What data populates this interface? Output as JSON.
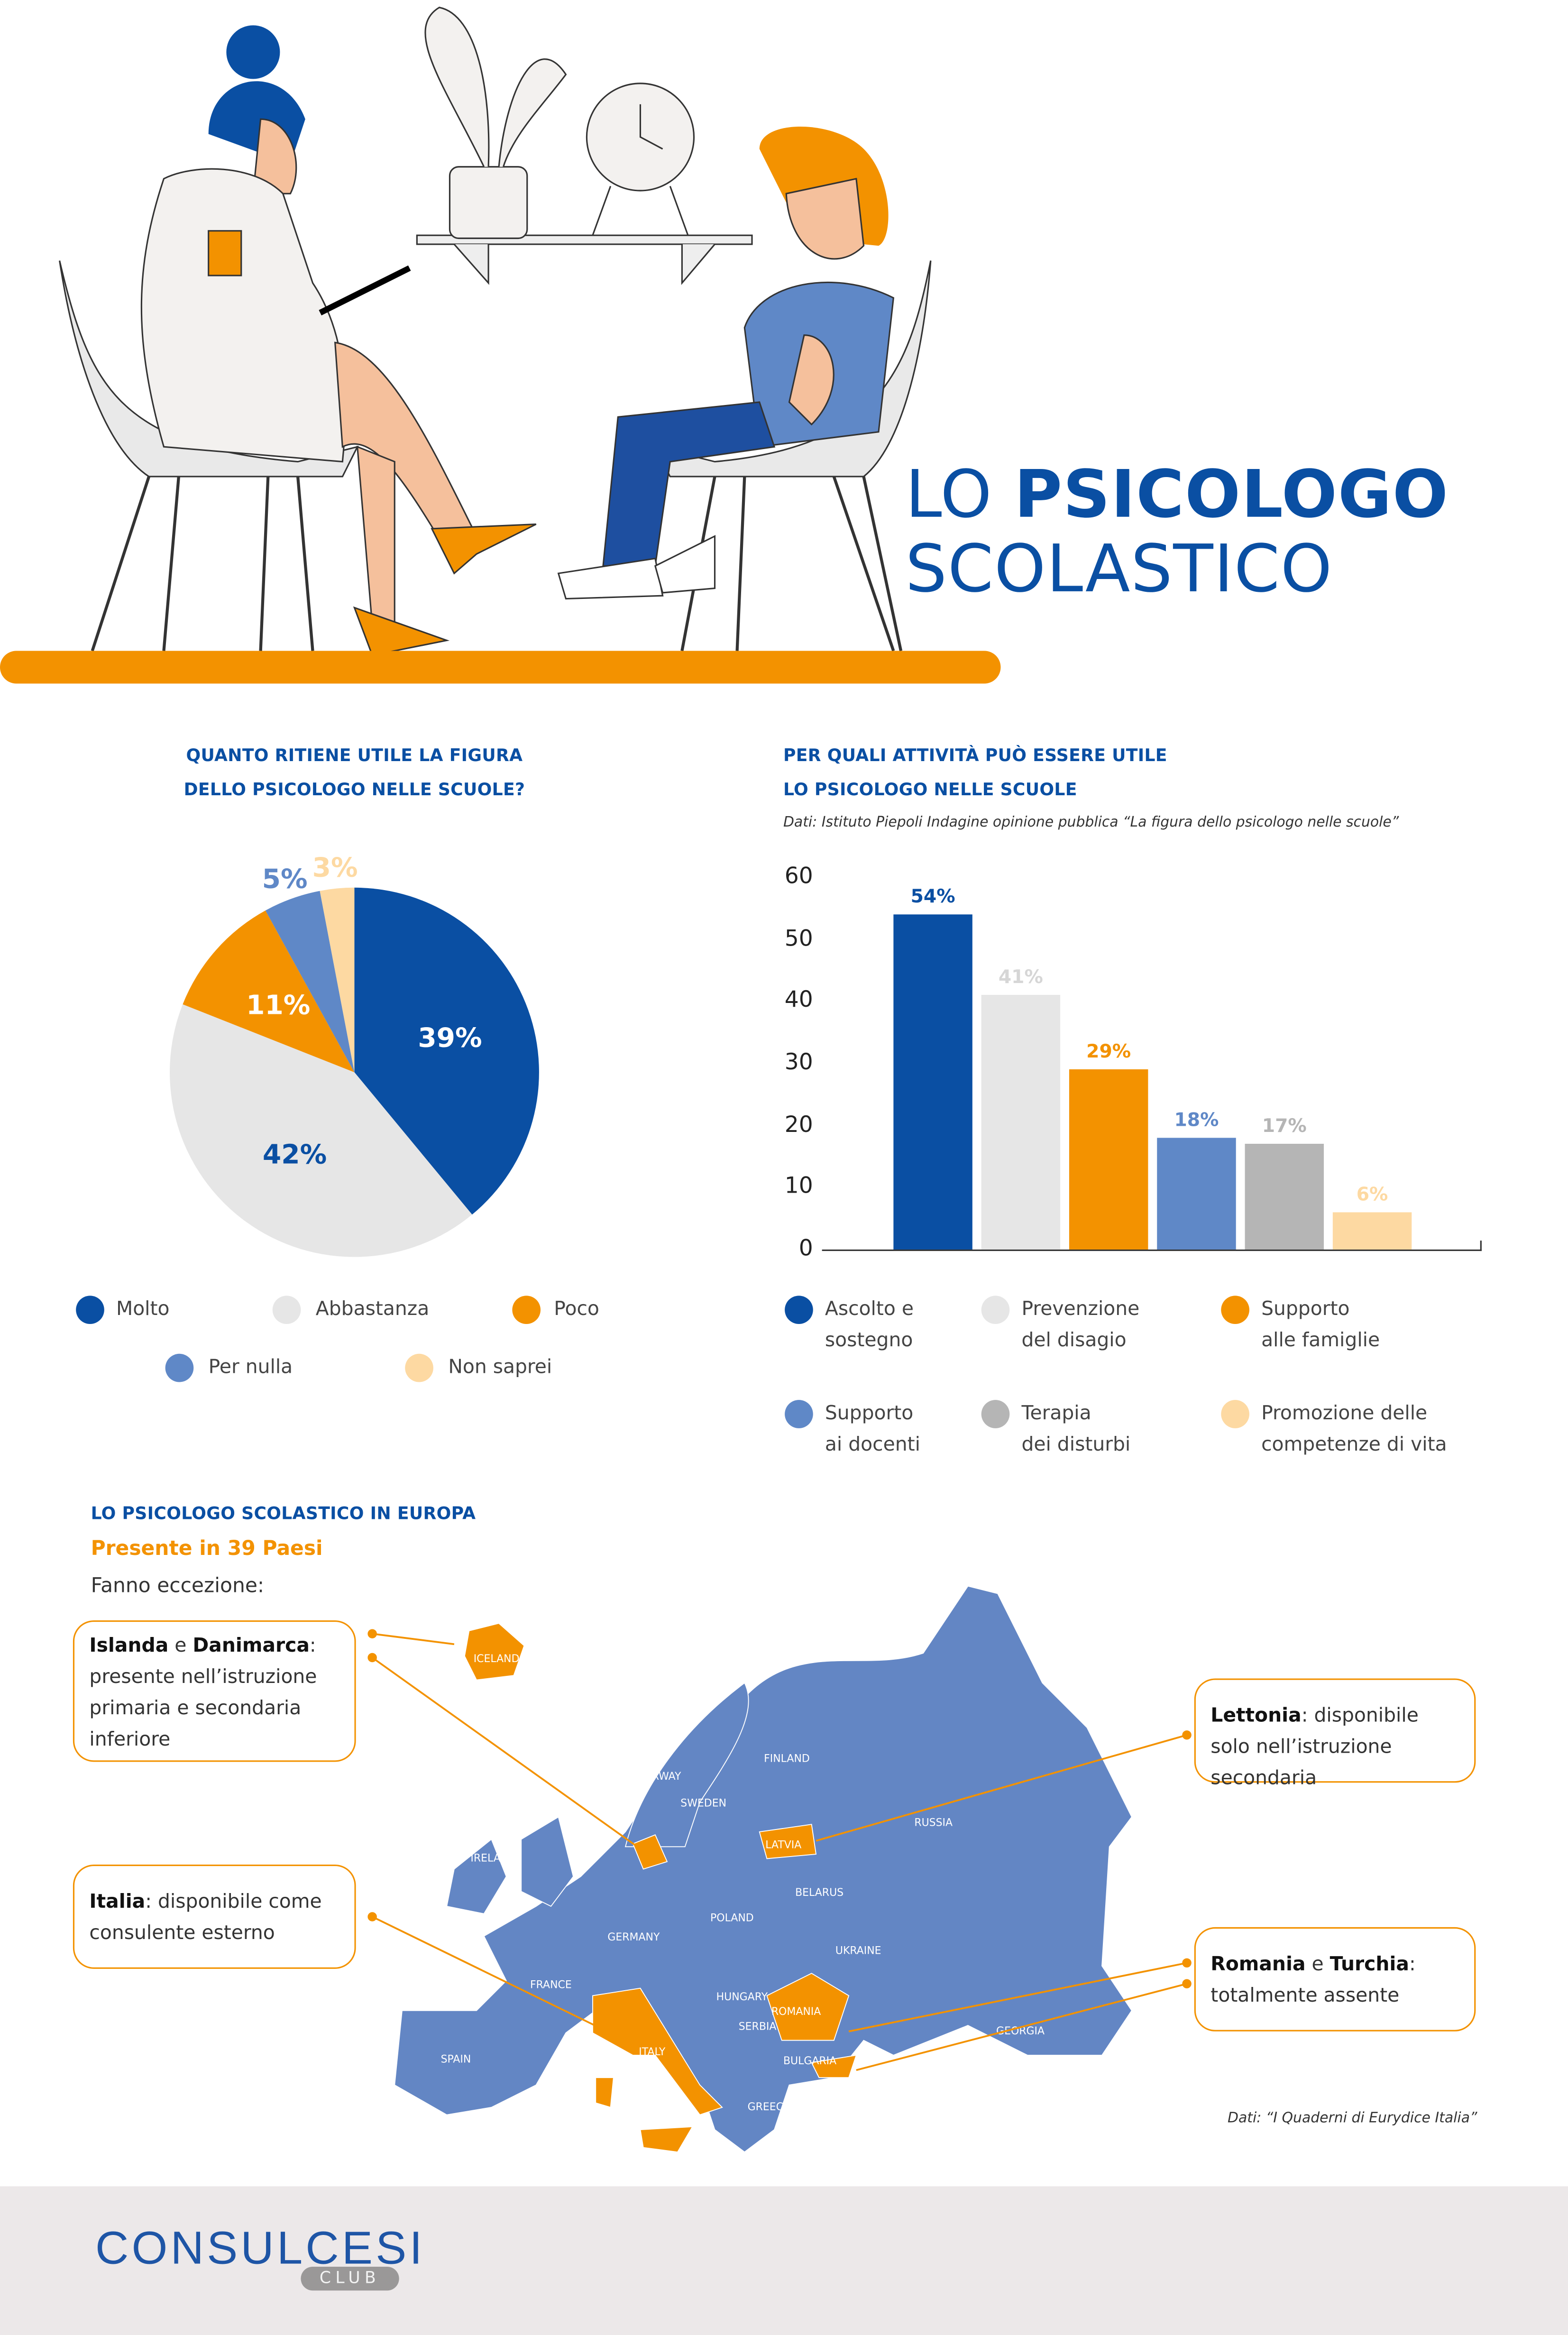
{
  "header": {
    "title_light": "LO",
    "title_bold": "PSICOLOGO",
    "title_line2": "SCOLASTICO"
  },
  "colors": {
    "blue": "#0a4fa3",
    "light_gray": "#e6e6e6",
    "orange": "#f39200",
    "light_blue": "#5f88c7",
    "gray": "#b5b5b5",
    "peach": "#fdd9a2",
    "map_blue": "#6386c4"
  },
  "chart_data": [
    {
      "type": "pie",
      "title": "QUANTO RITIENE UTILE LA FIGURA DELLO PSICOLOGO NELLE SCUOLE?",
      "title_lines": [
        "QUANTO RITIENE UTILE LA FIGURA",
        "DELLO PSICOLOGO NELLE SCUOLE?"
      ],
      "categories": [
        "Molto",
        "Abbastanza",
        "Poco",
        "Per nulla",
        "Non saprei"
      ],
      "values": [
        39,
        42,
        11,
        5,
        3
      ],
      "labels": [
        "39%",
        "42%",
        "11%",
        "5%",
        "3%"
      ],
      "colors": [
        "#0a4fa3",
        "#e6e6e6",
        "#f39200",
        "#5f88c7",
        "#fdd9a2"
      ]
    },
    {
      "type": "bar",
      "title": "PER QUALI ATTIVITÀ PUÒ ESSERE UTILE LO PSICOLOGO NELLE SCUOLE",
      "title_lines": [
        "PER QUALI ATTIVITÀ PUÒ ESSERE UTILE",
        "LO PSICOLOGO NELLE SCUOLE"
      ],
      "source": "Dati: Istituto Piepoli Indagine opinione pubblica “La figura dello psicologo nelle scuole”",
      "categories": [
        "Ascolto e sostegno",
        "Prevenzione del disagio",
        "Supporto alle famiglie",
        "Supporto ai docenti",
        "Terapia dei disturbi",
        "Promozione delle competenze di vita"
      ],
      "legend_lines": [
        [
          "Ascolto e",
          "sostegno"
        ],
        [
          "Prevenzione",
          "del disagio"
        ],
        [
          "Supporto",
          "alle famiglie"
        ],
        [
          "Supporto",
          "ai docenti"
        ],
        [
          "Terapia",
          "dei disturbi"
        ],
        [
          "Promozione delle",
          "competenze di vita"
        ]
      ],
      "values": [
        54,
        41,
        29,
        18,
        17,
        6
      ],
      "labels": [
        "54%",
        "41%",
        "29%",
        "18%",
        "17%",
        "6%"
      ],
      "colors": [
        "#0a4fa3",
        "#e6e6e6",
        "#f39200",
        "#5f88c7",
        "#b5b5b5",
        "#fdd9a2"
      ],
      "label_colors": [
        "#0a4fa3",
        "#d6d6d6",
        "#f39200",
        "#5f88c7",
        "#b5b5b5",
        "#fdd9a2"
      ],
      "yticks": [
        "0",
        "10",
        "20",
        "30",
        "40",
        "50",
        "60"
      ],
      "ylim": [
        0,
        60
      ]
    }
  ],
  "europe": {
    "title": "LO PSICOLOGO SCOLASTICO IN EUROPA",
    "subtitle": "Presente in 39 Paesi",
    "exceptions_label": "Fanno eccezione:",
    "callouts": [
      {
        "b1": "Islanda",
        "mid": " e ",
        "b2": "Danimarca",
        "text": ": presente nell’istruzione primaria e secondaria inferiore"
      },
      {
        "b1": "Italia",
        "mid": "",
        "b2": "",
        "text": ": disponibile come consulente esterno"
      },
      {
        "b1": "Lettonia",
        "mid": "",
        "b2": "",
        "text": ": disponibile solo nell’istruzione secondaria"
      },
      {
        "b1": "Romania",
        "mid": " e ",
        "b2": "Turchia",
        "text": ": totalmente assente"
      }
    ],
    "countries": [
      "ICELAND",
      "NORWAY",
      "SWEDEN",
      "FINLAND",
      "RUSSIA",
      "LATVIA",
      "BELARUS",
      "POLAND",
      "GERMANY",
      "UKRAINE",
      "FRANCE",
      "ROMANIA",
      "ITALY",
      "SPAIN",
      "BULGARIA",
      "SERBIA",
      "HUNGARY",
      "GREECE",
      "GEORGIA",
      "IRELAND"
    ],
    "source": "Dati: “I Quaderni di Eurydice Italia”"
  },
  "footer": {
    "logo": "CONSULCESI",
    "logo_sub": "CLUB"
  }
}
